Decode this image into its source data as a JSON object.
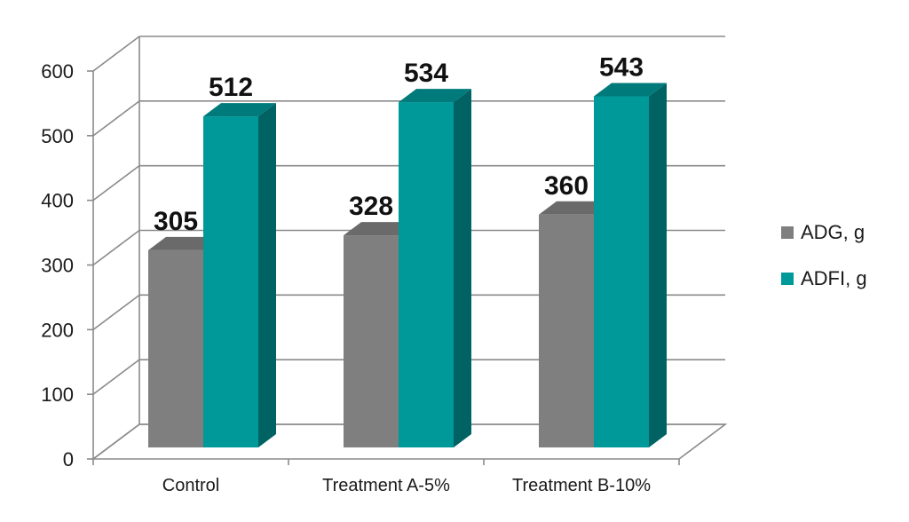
{
  "chart_data": {
    "type": "bar",
    "categories": [
      "Control",
      "Treatment A-5%",
      "Treatment B-10%"
    ],
    "series": [
      {
        "name": "ADG, g",
        "values": [
          305,
          328,
          360
        ],
        "color": "#7f7f7f",
        "side_color": "#5a5a5a",
        "top_color": "#6a6a6a"
      },
      {
        "name": "ADFI, g",
        "values": [
          512,
          534,
          543
        ],
        "color": "#009999",
        "side_color": "#006262",
        "top_color": "#007a7a"
      }
    ],
    "ylim": [
      0,
      600
    ],
    "yticks": [
      "0",
      "100",
      "200",
      "300",
      "400",
      "500",
      "600"
    ],
    "grid": true,
    "legend": "right",
    "data_labels": true,
    "title": "",
    "xlabel": "",
    "ylabel": ""
  }
}
